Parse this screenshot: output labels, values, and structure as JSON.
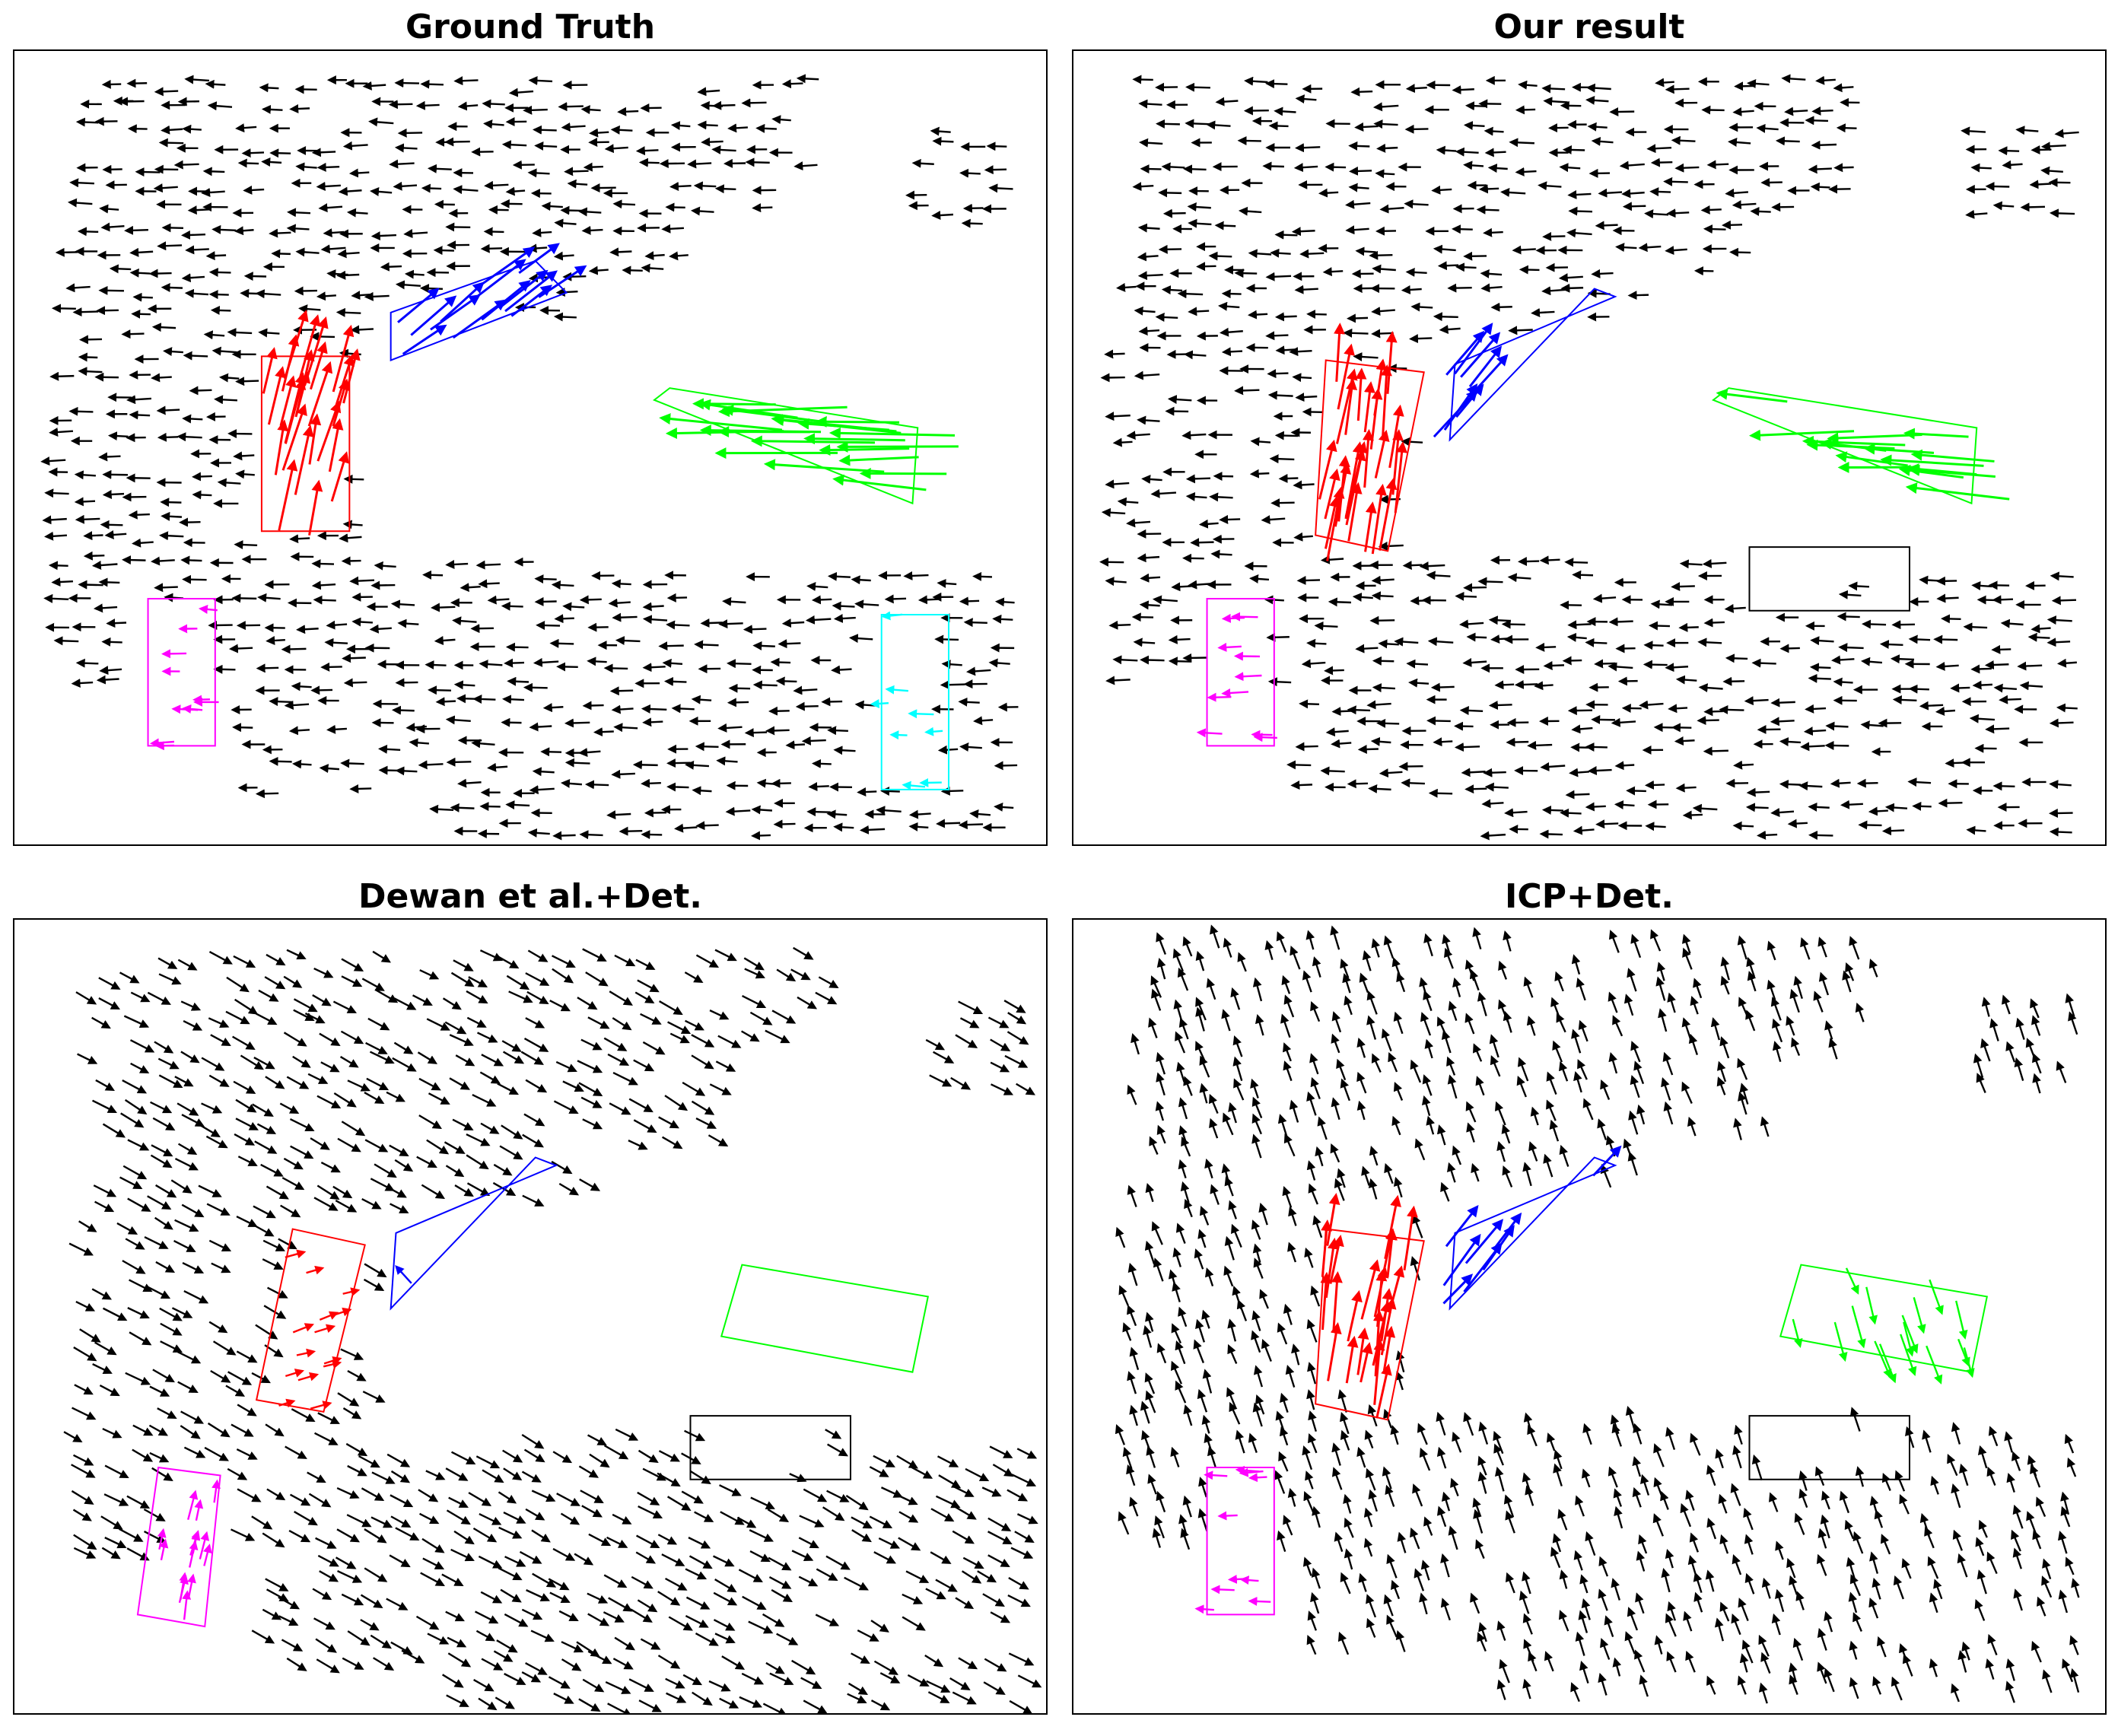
{
  "figure": {
    "description_colors": {
      "background": "#ffffff",
      "frame": "#000000",
      "static": "#000000",
      "red_object": "#ff0000",
      "blue_object": "#0000ff",
      "green_object": "#00ff00",
      "magenta_object": "#ff00ff",
      "cyan_object": "#00ffff"
    }
  },
  "chart_data": [
    {
      "type": "scatter",
      "subtype": "vector-field",
      "title": "Ground Truth",
      "grid": false,
      "legend": "none",
      "axis_ticks": false,
      "xlim": [
        0,
        100
      ],
      "ylim": [
        0,
        100
      ],
      "static_flow": {
        "color": "#000000",
        "direction": [
          -1.0,
          0.0
        ],
        "length": 2.0
      },
      "objects": [
        {
          "color": "#ff0000",
          "box": [
            [
              24.0,
              61.5
            ],
            [
              32.5,
              61.5
            ],
            [
              32.5,
              39.5
            ],
            [
              24.0,
              39.5
            ]
          ],
          "flow": {
            "direction": [
              0.25,
              1.0
            ],
            "length": 5.5,
            "count": 26
          }
        },
        {
          "color": "#0000ff",
          "box": [
            [
              36.5,
              61.0
            ],
            [
              53.5,
              69.5
            ],
            [
              50.5,
              73.5
            ],
            [
              36.5,
              67.0
            ]
          ],
          "flow": {
            "direction": [
              1.0,
              0.75
            ],
            "length": 5.0,
            "count": 14
          }
        },
        {
          "color": "#00ff00",
          "box": [
            [
              62.0,
              56.0
            ],
            [
              87.0,
              43.0
            ],
            [
              87.5,
              52.5
            ],
            [
              63.5,
              57.5
            ]
          ],
          "flow": {
            "direction": [
              -1.0,
              0.05
            ],
            "length": 10.0,
            "count": 22
          }
        },
        {
          "color": "#ff00ff",
          "box": [
            [
              13.0,
              31.0
            ],
            [
              19.5,
              31.0
            ],
            [
              19.5,
              12.5
            ],
            [
              13.0,
              12.5
            ]
          ],
          "flow": {
            "direction": [
              -1.0,
              0.0
            ],
            "length": 2.0,
            "count": 10
          }
        },
        {
          "color": "#00ffff",
          "box": [
            [
              84.0,
              29.0
            ],
            [
              90.5,
              29.0
            ],
            [
              90.5,
              7.0
            ],
            [
              84.0,
              7.0
            ]
          ],
          "flow": {
            "direction": [
              -1.0,
              0.0
            ],
            "length": 2.0,
            "count": 8
          }
        }
      ]
    },
    {
      "type": "scatter",
      "subtype": "vector-field",
      "title": "Our result",
      "grid": false,
      "legend": "none",
      "axis_ticks": false,
      "xlim": [
        0,
        100
      ],
      "ylim": [
        0,
        100
      ],
      "static_flow": {
        "color": "#000000",
        "direction": [
          -1.0,
          0.0
        ],
        "length": 2.0
      },
      "objects": [
        {
          "color": "#ff0000",
          "box": [
            [
              24.5,
              61.0
            ],
            [
              34.0,
              59.5
            ],
            [
              30.5,
              37.0
            ],
            [
              23.5,
              39.0
            ]
          ],
          "flow": {
            "direction": [
              0.15,
              1.0
            ],
            "length": 6.0,
            "count": 28
          }
        },
        {
          "color": "#0000ff",
          "box": [
            [
              37.0,
              60.5
            ],
            [
              52.5,
              69.0
            ],
            [
              50.5,
              70.0
            ],
            [
              36.5,
              51.0
            ]
          ],
          "flow": {
            "direction": [
              0.8,
              1.0
            ],
            "length": 5.0,
            "count": 8
          }
        },
        {
          "color": "#00ff00",
          "box": [
            [
              62.0,
              56.0
            ],
            [
              87.0,
              43.0
            ],
            [
              87.5,
              52.5
            ],
            [
              63.5,
              57.5
            ]
          ],
          "flow": {
            "direction": [
              -1.0,
              0.05
            ],
            "length": 8.0,
            "count": 16
          }
        },
        {
          "color": "#ff00ff",
          "box": [
            [
              13.0,
              31.0
            ],
            [
              19.5,
              31.0
            ],
            [
              19.5,
              12.5
            ],
            [
              13.0,
              12.5
            ]
          ],
          "flow": {
            "direction": [
              -1.0,
              0.0
            ],
            "length": 2.0,
            "count": 10
          }
        },
        {
          "color": "#000000",
          "box": [
            [
              65.5,
              37.5
            ],
            [
              81.0,
              37.5
            ],
            [
              81.0,
              29.5
            ],
            [
              65.5,
              29.5
            ]
          ],
          "flow": {
            "direction": [
              -1.0,
              0.0
            ],
            "length": 2.0,
            "count": 2
          }
        }
      ]
    },
    {
      "type": "scatter",
      "subtype": "vector-field",
      "title": "Dewan et al.+Det.",
      "grid": false,
      "legend": "none",
      "axis_ticks": false,
      "xlim": [
        0,
        100
      ],
      "ylim": [
        0,
        100
      ],
      "static_flow": {
        "color": "#000000",
        "direction": [
          1.0,
          -0.55
        ],
        "length": 2.2
      },
      "objects": [
        {
          "color": "#ff0000",
          "box": [
            [
              27.0,
              61.0
            ],
            [
              34.0,
              59.0
            ],
            [
              30.0,
              38.0
            ],
            [
              23.5,
              39.5
            ]
          ],
          "flow": {
            "direction": [
              1.0,
              0.3
            ],
            "length": 1.8,
            "count": 14
          }
        },
        {
          "color": "#0000ff",
          "box": [
            [
              37.0,
              60.5
            ],
            [
              52.5,
              69.0
            ],
            [
              50.5,
              70.0
            ],
            [
              36.5,
              51.0
            ]
          ],
          "flow": {
            "direction": [
              -0.6,
              0.8
            ],
            "length": 2.0,
            "count": 1
          }
        },
        {
          "color": "#00ff00",
          "box": [
            [
              70.5,
              56.5
            ],
            [
              88.5,
              52.5
            ],
            [
              87.0,
              43.0
            ],
            [
              68.5,
              47.5
            ]
          ],
          "flow": {
            "direction": [
              0.0,
              0.0
            ],
            "length": 0.0,
            "count": 0
          }
        },
        {
          "color": "#ff00ff",
          "box": [
            [
              14.0,
              31.0
            ],
            [
              20.0,
              30.0
            ],
            [
              18.5,
              11.0
            ],
            [
              12.0,
              12.5
            ]
          ],
          "flow": {
            "direction": [
              0.2,
              1.0
            ],
            "length": 2.5,
            "count": 14
          }
        },
        {
          "color": "#000000",
          "box": [
            [
              65.5,
              37.5
            ],
            [
              81.0,
              37.5
            ],
            [
              81.0,
              29.5
            ],
            [
              65.5,
              29.5
            ]
          ],
          "flow": {
            "direction": [
              1.0,
              -0.55
            ],
            "length": 2.0,
            "count": 3
          }
        }
      ]
    },
    {
      "type": "scatter",
      "subtype": "vector-field",
      "title": "ICP+Det.",
      "grid": false,
      "legend": "none",
      "axis_ticks": false,
      "xlim": [
        0,
        100
      ],
      "ylim": [
        0,
        100
      ],
      "static_flow": {
        "color": "#000000",
        "direction": [
          -0.35,
          1.0
        ],
        "length": 2.0
      },
      "objects": [
        {
          "color": "#ff0000",
          "box": [
            [
              24.5,
              61.0
            ],
            [
              34.0,
              59.5
            ],
            [
              30.5,
              37.0
            ],
            [
              23.5,
              39.0
            ]
          ],
          "flow": {
            "direction": [
              0.15,
              1.0
            ],
            "length": 5.0,
            "count": 26
          }
        },
        {
          "color": "#0000ff",
          "box": [
            [
              37.0,
              60.5
            ],
            [
              52.5,
              69.0
            ],
            [
              50.5,
              70.0
            ],
            [
              36.5,
              51.0
            ]
          ],
          "flow": {
            "direction": [
              0.8,
              1.0
            ],
            "length": 5.0,
            "count": 8
          }
        },
        {
          "color": "#00ff00",
          "box": [
            [
              70.5,
              56.5
            ],
            [
              88.5,
              52.5
            ],
            [
              87.0,
              43.0
            ],
            [
              68.5,
              47.5
            ]
          ],
          "flow": {
            "direction": [
              0.35,
              -1.0
            ],
            "length": 3.5,
            "count": 16
          }
        },
        {
          "color": "#ff00ff",
          "box": [
            [
              13.0,
              31.0
            ],
            [
              19.5,
              31.0
            ],
            [
              19.5,
              12.5
            ],
            [
              13.0,
              12.5
            ]
          ],
          "flow": {
            "direction": [
              -1.0,
              0.0
            ],
            "length": 2.0,
            "count": 10
          }
        },
        {
          "color": "#000000",
          "box": [
            [
              65.5,
              37.5
            ],
            [
              81.0,
              37.5
            ],
            [
              81.0,
              29.5
            ],
            [
              65.5,
              29.5
            ]
          ],
          "flow": {
            "direction": [
              -0.35,
              1.0
            ],
            "length": 2.0,
            "count": 2
          }
        }
      ]
    }
  ]
}
